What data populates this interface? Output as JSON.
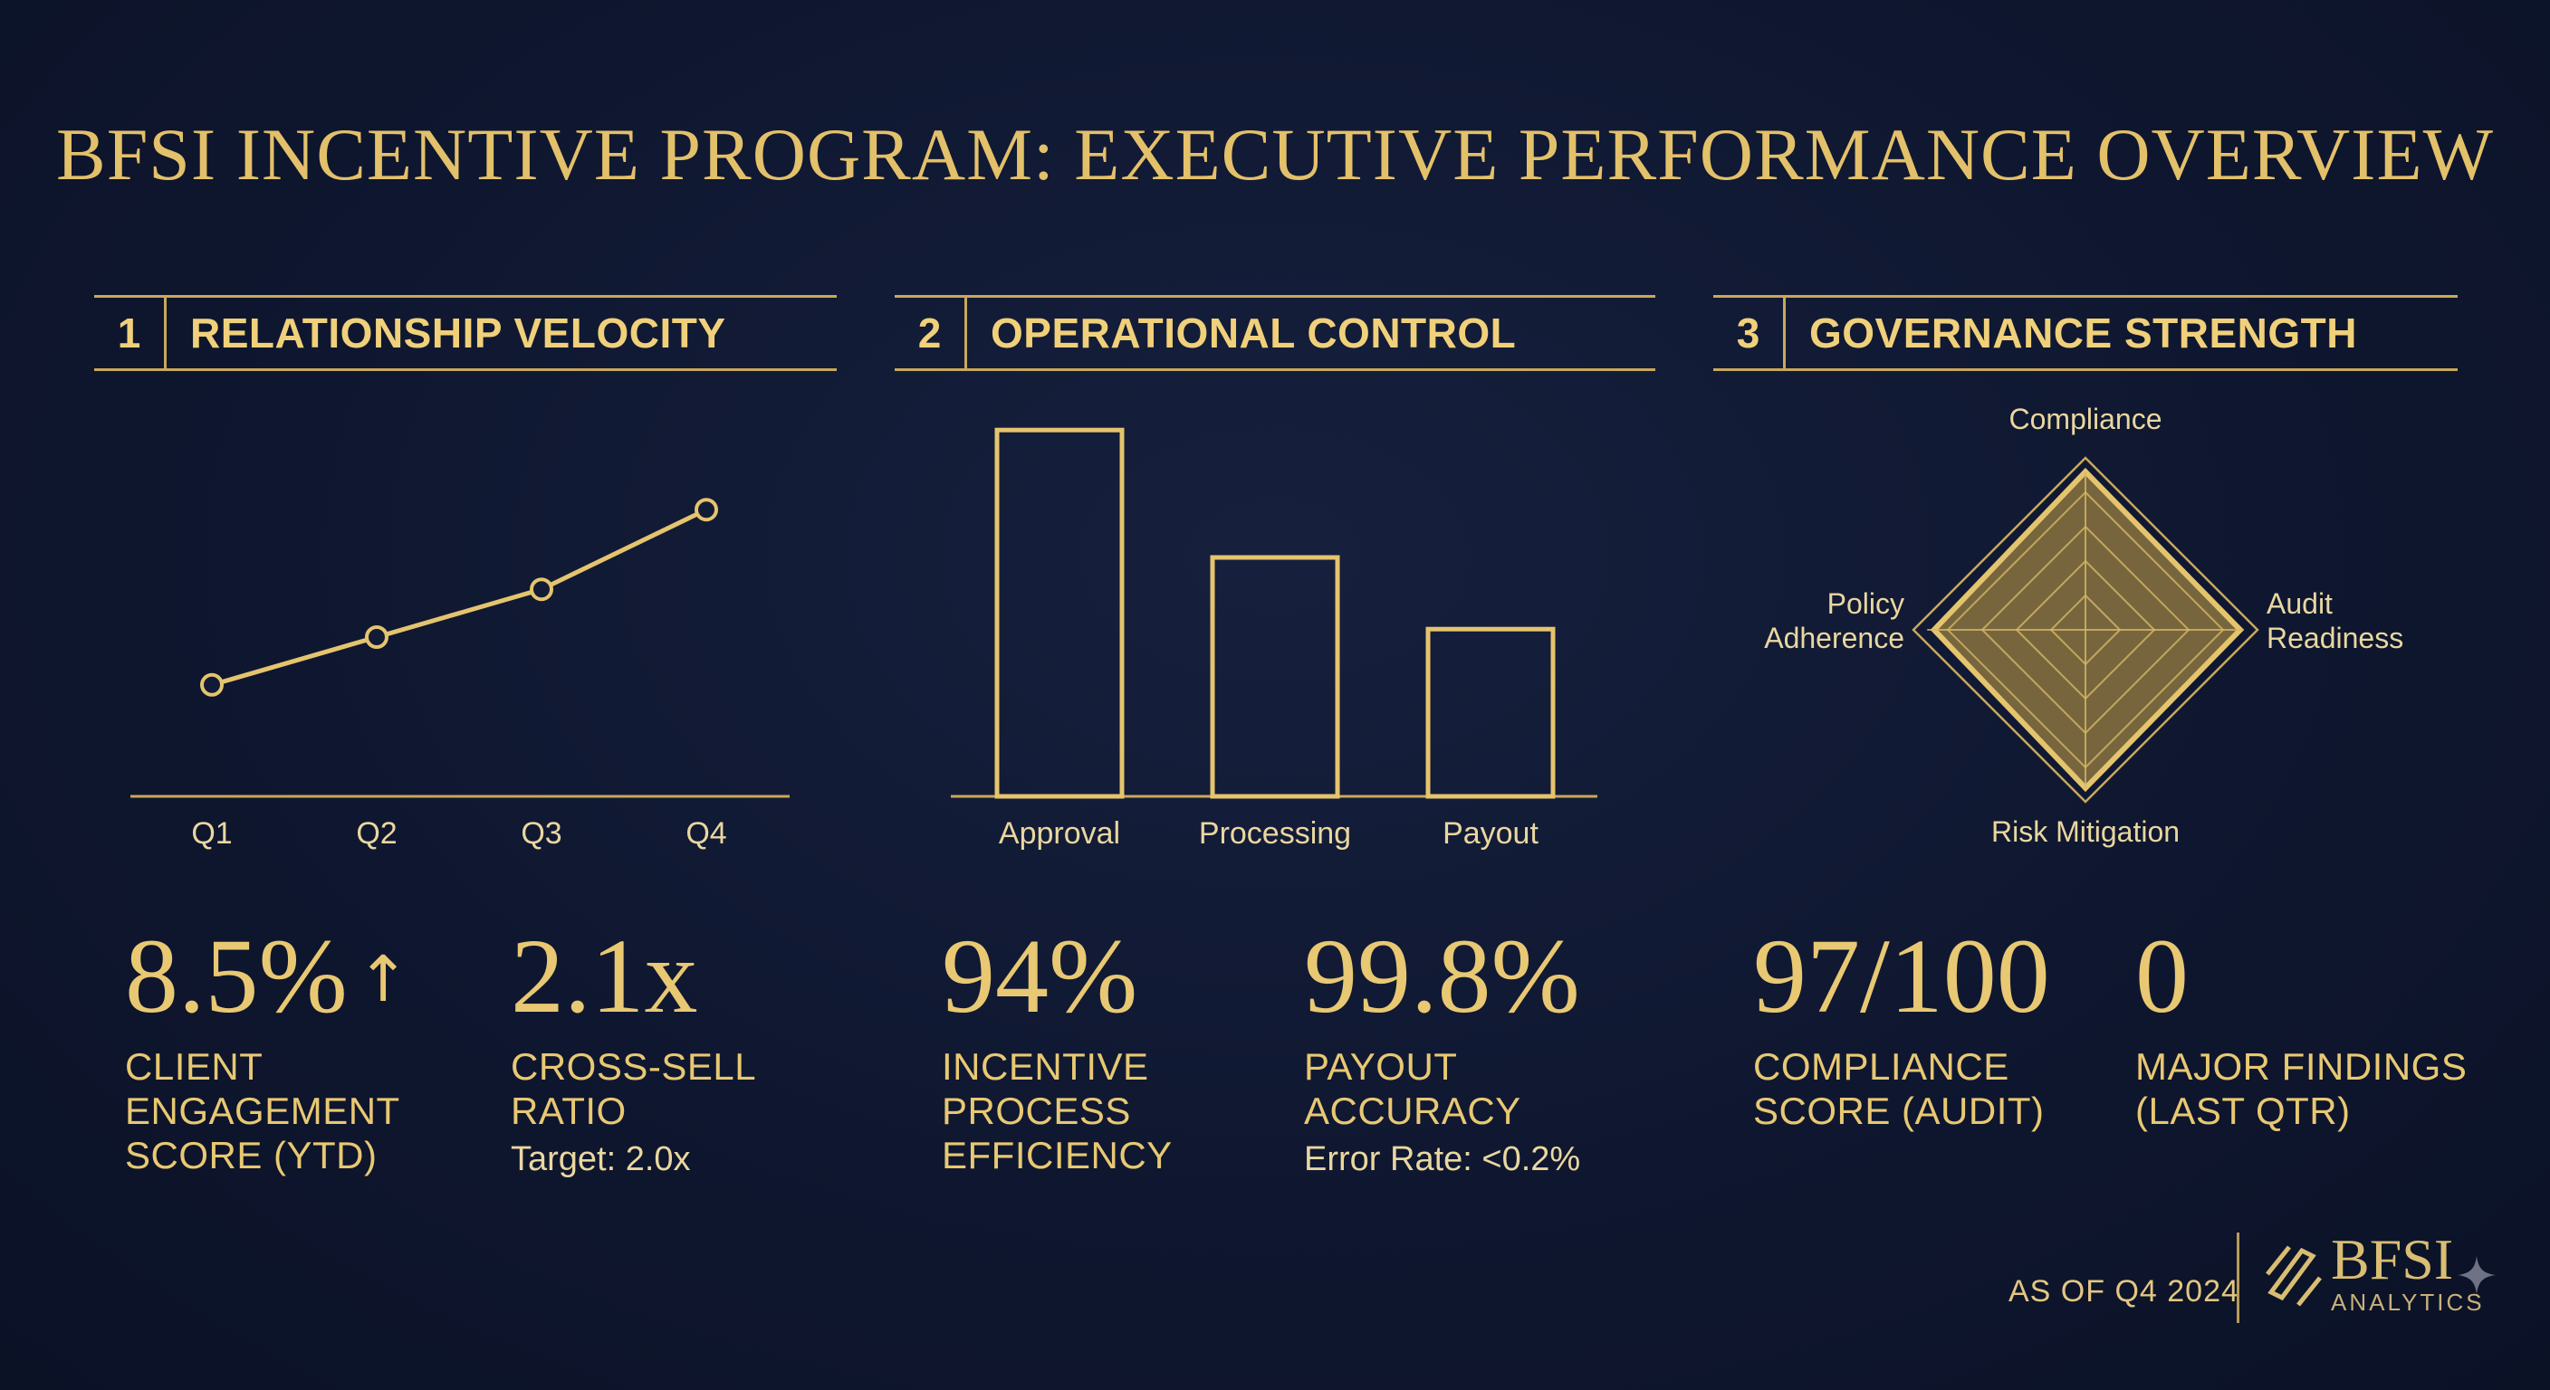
{
  "title": "BFSI INCENTIVE PROGRAM: EXECUTIVE PERFORMANCE OVERVIEW",
  "sections": [
    {
      "number": "1",
      "title": "RELATIONSHIP VELOCITY",
      "kpis": [
        {
          "value": "8.5%",
          "arrow": "↑",
          "label": [
            "CLIENT",
            "ENGAGEMENT",
            "SCORE (YTD)"
          ],
          "sub": ""
        },
        {
          "value": "2.1x",
          "label": [
            "CROSS-SELL",
            "RATIO"
          ],
          "sub": "Target: 2.0x"
        }
      ]
    },
    {
      "number": "2",
      "title": "OPERATIONAL CONTROL",
      "kpis": [
        {
          "value": "94%",
          "label": [
            "INCENTIVE",
            "PROCESS",
            "EFFICIENCY"
          ],
          "sub": ""
        },
        {
          "value": "99.8%",
          "label": [
            "PAYOUT",
            "ACCURACY"
          ],
          "sub": "Error Rate: <0.2%"
        }
      ]
    },
    {
      "number": "3",
      "title": "GOVERNANCE STRENGTH",
      "kpis": [
        {
          "value": "97/100",
          "label": [
            "COMPLIANCE",
            "SCORE (AUDIT)"
          ],
          "sub": ""
        },
        {
          "value": "0",
          "label": [
            "MAJOR FINDINGS",
            "(LAST QTR)"
          ],
          "sub": ""
        }
      ]
    }
  ],
  "chart_data": [
    {
      "type": "line",
      "title": "Relationship Velocity",
      "categories": [
        "Q1",
        "Q2",
        "Q3",
        "Q4"
      ],
      "values": [
        28,
        40,
        52,
        72
      ],
      "ylim": [
        0,
        100
      ],
      "grid": false,
      "xlabel": "",
      "ylabel": ""
    },
    {
      "type": "bar",
      "title": "Operational Control",
      "categories": [
        "Approval",
        "Processing",
        "Payout"
      ],
      "values": [
        92,
        60,
        42
      ],
      "ylim": [
        0,
        100
      ],
      "grid": false,
      "xlabel": "",
      "ylabel": ""
    },
    {
      "type": "radar",
      "title": "Governance Strength",
      "axes": [
        "Compliance",
        "Audit Readiness",
        "Risk Mitigation",
        "Policy Adherence"
      ],
      "axis_labels": [
        [
          "Compliance"
        ],
        [
          "Audit",
          "Readiness"
        ],
        [
          "Risk Mitigation"
        ],
        [
          "Policy",
          "Adherence"
        ]
      ],
      "values": [
        0.92,
        0.9,
        0.92,
        0.88
      ],
      "rmax": 1,
      "rings": 5
    }
  ],
  "footer": {
    "as_of": "AS OF Q4 2024",
    "brand_name": "BFSI",
    "brand_sub": "ANALYTICS"
  },
  "colors": {
    "gold": "#e5c46e",
    "line": "#c9a85a",
    "background": "#0f1730"
  }
}
